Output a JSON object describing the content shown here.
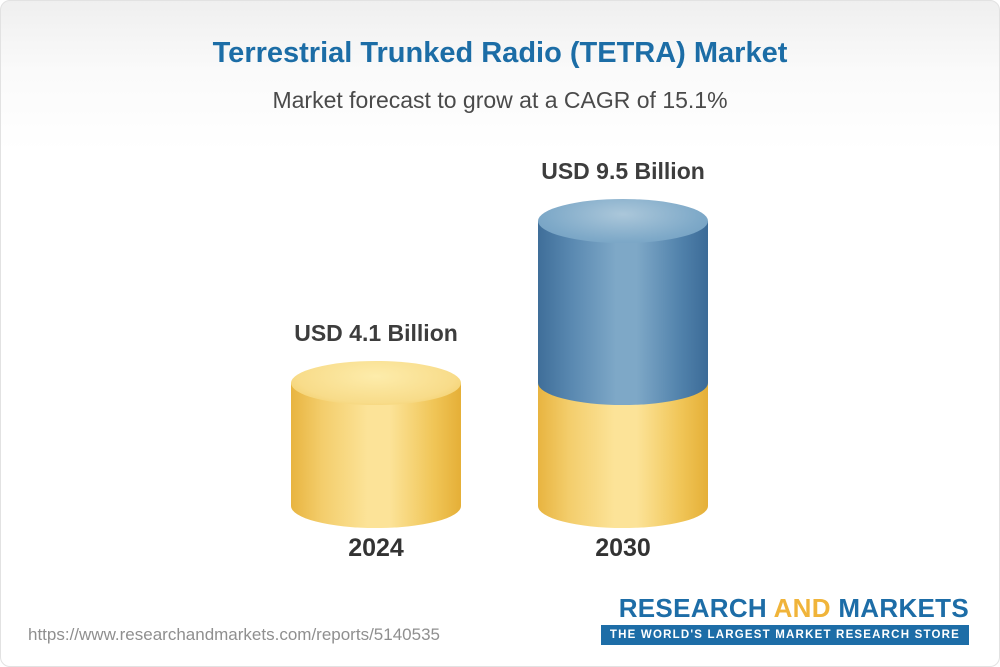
{
  "header": {
    "title": "Terrestrial Trunked Radio (TETRA) Market",
    "subtitle": "Market forecast to grow at a CAGR of 15.1%"
  },
  "footer": {
    "url": "https://www.researchandmarkets.com/reports/5140535",
    "logo": {
      "research": "RESEARCH",
      "and": "AND",
      "markets": "MARKETS",
      "tagline": "THE WORLD'S LARGEST MARKET RESEARCH STORE"
    }
  },
  "chart_data": {
    "type": "bar",
    "subtype": "3d-cylinder",
    "title": "Terrestrial Trunked Radio (TETRA) Market",
    "subtitle": "Market forecast to grow at a CAGR of 15.1%",
    "unit": "USD Billion",
    "categories": [
      "2024",
      "2030"
    ],
    "values": [
      4.1,
      9.5
    ],
    "value_labels": [
      "USD 4.1 Billion",
      "USD 9.5 Billion"
    ],
    "cagr_percent": 15.1,
    "xlabel": "",
    "ylabel": "",
    "grid": false,
    "legend": false,
    "colors": {
      "bar_2024": "#f6d370",
      "bar_2030_growth_segment": "#5d8cb3",
      "title_text": "#1c6da6"
    },
    "notes": "2030 cylinder is stacked: lower gold segment equals the 2024 base value (4.1), upper blue segment represents growth up to 9.5"
  }
}
